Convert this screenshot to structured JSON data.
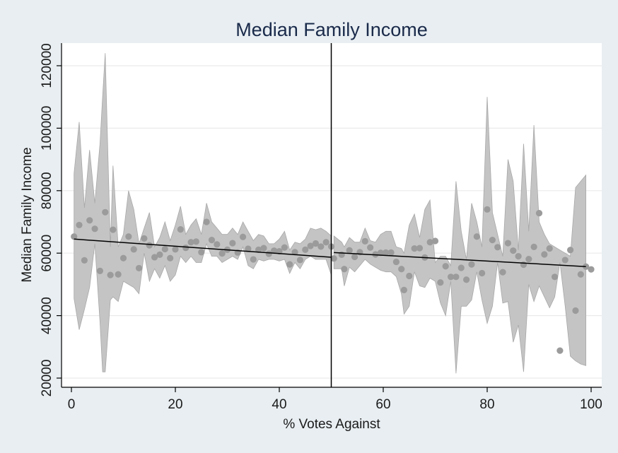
{
  "chart_data": {
    "type": "scatter",
    "title": "Median Family Income",
    "xlabel": "% Votes Against",
    "ylabel": "Median Family Income",
    "xlim": [
      0,
      100
    ],
    "ylim": [
      20000,
      126000
    ],
    "xticks": [
      0,
      20,
      40,
      60,
      80,
      100
    ],
    "xtick_labels": [
      "0",
      "20",
      "40",
      "60",
      "80",
      "100"
    ],
    "yticks": [
      20000,
      40000,
      60000,
      80000,
      100000,
      120000
    ],
    "ytick_labels": [
      "20000",
      "40000",
      "60000",
      "80000",
      "100000",
      "120000"
    ],
    "grid": "horizontal",
    "cutoff_x": 50,
    "colors": {
      "points": "#9b9b9b",
      "band": "#c4c4c4",
      "band_edge": "#a8a8a8",
      "fit_line": "#000000",
      "cutoff_line": "#000000",
      "plot_background": "#ffffff",
      "page_background": "#e8eef2",
      "title": "#1a2a4a"
    },
    "points": [
      [
        0.5,
        65300
      ],
      [
        1.5,
        69000
      ],
      [
        2.5,
        57700
      ],
      [
        3.5,
        70500
      ],
      [
        4.5,
        67800
      ],
      [
        5.5,
        54300
      ],
      [
        6.5,
        73100
      ],
      [
        7.5,
        53000
      ],
      [
        8.0,
        67500
      ],
      [
        9.0,
        53200
      ],
      [
        10,
        58400
      ],
      [
        11,
        65300
      ],
      [
        12,
        61200
      ],
      [
        13,
        55200
      ],
      [
        14,
        64700
      ],
      [
        15,
        62500
      ],
      [
        16,
        58700
      ],
      [
        17,
        59500
      ],
      [
        18,
        61300
      ],
      [
        19,
        58400
      ],
      [
        20,
        61200
      ],
      [
        21,
        67600
      ],
      [
        22,
        61700
      ],
      [
        23,
        63500
      ],
      [
        24,
        63700
      ],
      [
        25,
        60300
      ],
      [
        26,
        70000
      ],
      [
        27,
        64200
      ],
      [
        28,
        62800
      ],
      [
        29,
        59900
      ],
      [
        30,
        61100
      ],
      [
        31,
        63200
      ],
      [
        32,
        60200
      ],
      [
        33,
        65200
      ],
      [
        34,
        61400
      ],
      [
        35,
        58000
      ],
      [
        36,
        61100
      ],
      [
        37,
        61600
      ],
      [
        38,
        59800
      ],
      [
        39,
        60800
      ],
      [
        40,
        60600
      ],
      [
        41,
        61800
      ],
      [
        42,
        56400
      ],
      [
        43,
        60300
      ],
      [
        44,
        57800
      ],
      [
        45,
        61100
      ],
      [
        46,
        62300
      ],
      [
        47,
        63100
      ],
      [
        48,
        62100
      ],
      [
        49,
        63500
      ],
      [
        50,
        62100
      ],
      [
        50.5,
        58300
      ],
      [
        52,
        59500
      ],
      [
        52.5,
        54900
      ],
      [
        53.5,
        60900
      ],
      [
        54.5,
        58800
      ],
      [
        55.5,
        60300
      ],
      [
        56.5,
        63800
      ],
      [
        57.5,
        61800
      ],
      [
        58.5,
        59600
      ],
      [
        59.5,
        60100
      ],
      [
        60.5,
        60200
      ],
      [
        61.5,
        60200
      ],
      [
        62.5,
        57200
      ],
      [
        63.5,
        54900
      ],
      [
        64,
        48200
      ],
      [
        65,
        52700
      ],
      [
        66,
        61500
      ],
      [
        67,
        61600
      ],
      [
        68,
        58600
      ],
      [
        69,
        63500
      ],
      [
        70,
        63900
      ],
      [
        71,
        50600
      ],
      [
        72,
        55800
      ],
      [
        73,
        52400
      ],
      [
        74,
        52400
      ],
      [
        75,
        55300
      ],
      [
        76,
        51500
      ],
      [
        77,
        56400
      ],
      [
        78,
        65300
      ],
      [
        79,
        53600
      ],
      [
        80,
        74000
      ],
      [
        81,
        64200
      ],
      [
        82,
        61900
      ],
      [
        83,
        53900
      ],
      [
        84,
        63200
      ],
      [
        85,
        60800
      ],
      [
        86,
        59000
      ],
      [
        87,
        56300
      ],
      [
        88,
        58100
      ],
      [
        89,
        62000
      ],
      [
        90,
        72800
      ],
      [
        91,
        59600
      ],
      [
        92,
        61500
      ],
      [
        93,
        52400
      ],
      [
        94,
        28800
      ],
      [
        95,
        57800
      ],
      [
        96,
        61000
      ],
      [
        97,
        41600
      ],
      [
        98,
        53200
      ],
      [
        99,
        55700
      ],
      [
        100,
        54800
      ]
    ],
    "ci_band": {
      "x": [
        0.5,
        1.5,
        2.5,
        3.5,
        4.5,
        5.5,
        6.0,
        6.5,
        7.5,
        8.0,
        9.0,
        10,
        11,
        12,
        13,
        14,
        15,
        16,
        17,
        18,
        19,
        20,
        21,
        22,
        23,
        24,
        25,
        26,
        27,
        28,
        29,
        30,
        31,
        32,
        33,
        34,
        35,
        36,
        37,
        38,
        39,
        40,
        41,
        42,
        43,
        44,
        45,
        46,
        47,
        48,
        49,
        50
      ],
      "upper": [
        85500,
        102000,
        74500,
        93000,
        76000,
        95000,
        110000,
        124000,
        62000,
        88000,
        62000,
        66000,
        80000,
        74000,
        63000,
        68000,
        73000,
        62000,
        65000,
        70000,
        64000,
        69000,
        75000,
        66000,
        69000,
        71000,
        66000,
        76000,
        70000,
        68000,
        66000,
        66000,
        68000,
        66000,
        70000,
        67000,
        64000,
        66000,
        65500,
        63000,
        63000,
        64500,
        67000,
        61000,
        63500,
        63000,
        64500,
        68000,
        67500,
        68000,
        67000,
        65500
      ],
      "lower": [
        45500,
        35500,
        42000,
        49000,
        63000,
        38000,
        22000,
        22000,
        45000,
        46000,
        44500,
        51000,
        50000,
        49000,
        47000,
        60000,
        51000,
        55000,
        52000,
        56000,
        51000,
        53000,
        59000,
        57000,
        59000,
        57000,
        57000,
        63000,
        59000,
        59000,
        57000,
        58000,
        59000,
        58000,
        62000,
        56000,
        55000,
        58000,
        57500,
        58000,
        58000,
        57500,
        58000,
        53500,
        57000,
        55000,
        58000,
        59000,
        58000,
        58000,
        58000,
        53000
      ]
    },
    "ci_band_right": {
      "x": [
        50.5,
        52,
        52.5,
        53.5,
        54.5,
        55.5,
        56.5,
        57.5,
        58.5,
        59.5,
        60.5,
        61.5,
        62.5,
        63.5,
        64,
        65,
        66,
        67,
        68,
        69,
        70,
        71,
        72,
        73,
        74,
        75,
        76,
        77,
        78,
        79,
        80,
        81,
        82,
        83,
        84,
        85,
        86,
        87,
        88,
        89,
        90,
        91,
        92,
        93,
        94,
        95,
        96,
        97,
        98,
        99
      ],
      "upper": [
        65500,
        63500,
        62000,
        65000,
        63500,
        63500,
        68000,
        64000,
        63500,
        66000,
        67000,
        67000,
        62000,
        61500,
        60000,
        69000,
        72500,
        65000,
        74000,
        77000,
        57000,
        59000,
        59000,
        56000,
        83000,
        67000,
        58000,
        76000,
        70000,
        62000,
        110000,
        73000,
        66000,
        59000,
        90000,
        83000,
        61000,
        95000,
        67000,
        101000,
        70000,
        66000,
        63000,
        62000,
        61000,
        60000,
        59000,
        81000,
        83000,
        85000
      ],
      "lower": [
        55000,
        55000,
        49500,
        55500,
        54000,
        56000,
        58000,
        56500,
        55500,
        54500,
        54000,
        54000,
        52500,
        47000,
        40500,
        43000,
        54000,
        49500,
        49000,
        52000,
        51000,
        44000,
        40000,
        51000,
        21500,
        43000,
        43000,
        45000,
        54000,
        45000,
        37500,
        43000,
        57000,
        44000,
        44500,
        31500,
        37000,
        22000,
        50000,
        44500,
        49500,
        46000,
        42500,
        46000,
        57000,
        43000,
        27000,
        25500,
        24500,
        24000
      ]
    },
    "fit_lines": [
      {
        "x": [
          0.5,
          50
        ],
        "y": [
          64500,
          58700
        ]
      },
      {
        "x": [
          50.5,
          99
        ],
        "y": [
          60200,
          55700
        ]
      }
    ]
  }
}
